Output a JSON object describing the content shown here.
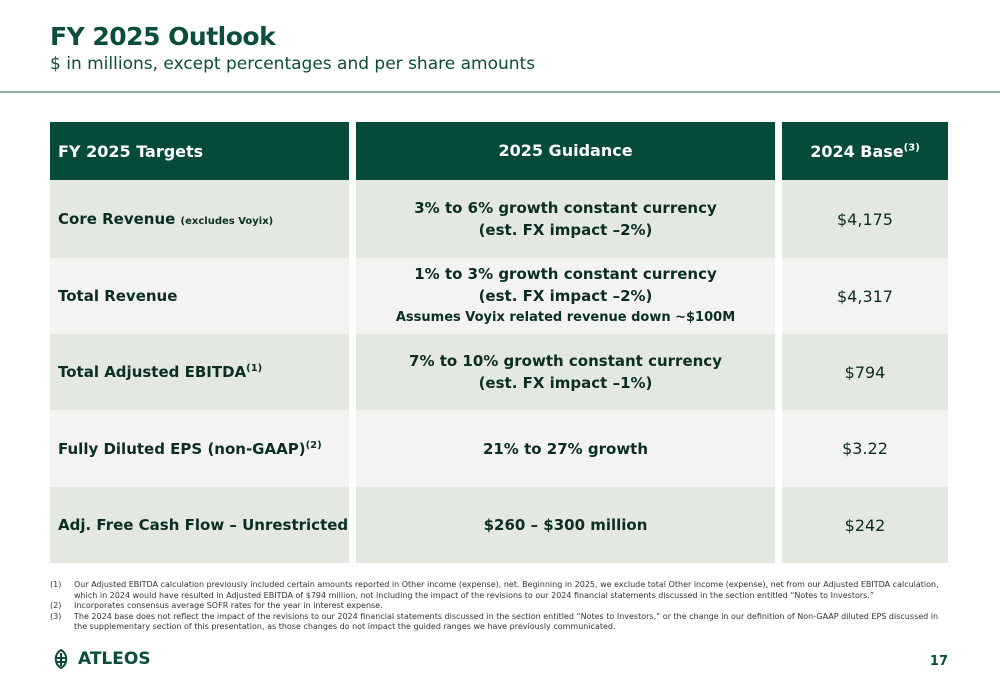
{
  "header": {
    "title": "FY 2025 Outlook",
    "subtitle": "$ in millions, except percentages and per share amounts"
  },
  "table": {
    "columns": [
      {
        "text": "FY 2025 Targets"
      },
      {
        "text": "2025 Guidance"
      },
      {
        "text": "2024 Base",
        "sup": "(3)"
      }
    ],
    "rows": [
      {
        "label": "Core Revenue",
        "label_note": "(excludes Voyix)",
        "guidance": [
          "3% to 6% growth constant currency",
          "(est. FX impact –2%)"
        ],
        "base": "$4,175"
      },
      {
        "label": "Total Revenue",
        "guidance": [
          "1% to 3% growth constant currency",
          "(est. FX impact –2%)",
          "Assumes Voyix related revenue down ~$100M"
        ],
        "base": "$4,317"
      },
      {
        "label": "Total Adjusted EBITDA",
        "sup": "(1)",
        "guidance": [
          "7% to 10% growth constant currency",
          "(est. FX impact –1%)"
        ],
        "base": "$794"
      },
      {
        "label": "Fully Diluted EPS (non-GAAP)",
        "sup": "(2)",
        "guidance": [
          "21% to 27% growth"
        ],
        "base": "$3.22"
      },
      {
        "label": "Adj. Free Cash Flow – Unrestricted",
        "guidance": [
          "$260 – $300 million"
        ],
        "base": "$242"
      }
    ]
  },
  "footnotes": [
    {
      "marker": "(1)",
      "text": "Our Adjusted EBITDA calculation previously included certain amounts reported in Other income (expense), net. Beginning in 2025, we exclude total Other income (expense), net from our Adjusted EBITDA calculation, which in 2024 would have resulted in Adjusted EBITDA of $794 million, not including the impact of the revisions to our 2024 financial statements discussed in the section entitled “Notes to Investors.”"
    },
    {
      "marker": "(2)",
      "text": "Incorporates consensus average SOFR rates for the year in interest expense."
    },
    {
      "marker": "(3)",
      "text": "The 2024 base does not reflect the impact of the revisions to our 2024 financial statements discussed in the section entitled “Notes to Investors,” or the change in our definition of Non-GAAP diluted EPS discussed in the supplementary section of this presentation, as those changes do not impact the guided ranges we have previously communicated."
    }
  ],
  "footer": {
    "logo": "ATLEOS",
    "page": "17"
  }
}
